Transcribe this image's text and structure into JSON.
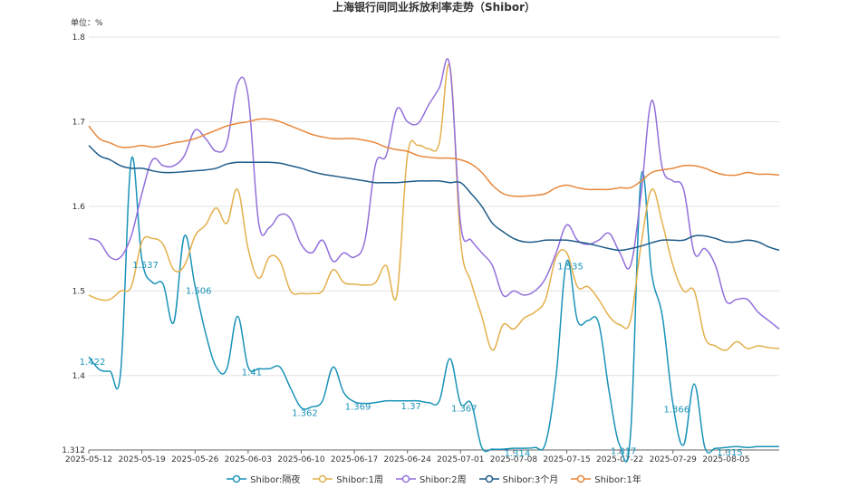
{
  "chart_data": {
    "type": "line",
    "title": "上海银行间同业拆放利率走势（Shibor）",
    "y_unit_label": "单位：%",
    "categories": [
      "2025-05-12",
      null,
      null,
      null,
      null,
      "2025-05-19",
      null,
      null,
      null,
      null,
      "2025-05-26",
      null,
      null,
      null,
      null,
      "2025-06-03",
      null,
      null,
      null,
      null,
      "2025-06-10",
      null,
      null,
      null,
      null,
      "2025-06-17",
      null,
      null,
      null,
      null,
      "2025-06-24",
      null,
      null,
      null,
      null,
      "2025-07-01",
      null,
      null,
      null,
      null,
      "2025-07-08",
      null,
      null,
      null,
      null,
      "2025-07-15",
      null,
      null,
      null,
      null,
      "2025-07-22",
      null,
      null,
      null,
      null,
      "2025-07-29",
      null,
      null,
      null,
      null,
      "2025-08-05",
      null,
      null,
      null,
      null,
      null
    ],
    "ylim": [
      1.312,
      1.8
    ],
    "yticks": [
      1.312,
      1.4,
      1.5,
      1.6,
      1.7,
      1.8
    ],
    "grid": true,
    "smooth": true,
    "legend": "bottom",
    "series": [
      {
        "name": "Shibor:隔夜",
        "color": "#1a93b8",
        "values": [
          1.422,
          1.407,
          1.405,
          1.404,
          1.655,
          1.537,
          1.51,
          1.508,
          1.463,
          1.565,
          1.506,
          1.45,
          1.41,
          1.408,
          1.47,
          1.41,
          1.408,
          1.408,
          1.41,
          1.385,
          1.362,
          1.363,
          1.37,
          1.41,
          1.38,
          1.369,
          1.367,
          1.368,
          1.37,
          1.37,
          1.37,
          1.37,
          1.368,
          1.37,
          1.42,
          1.367,
          1.367,
          1.315,
          1.313,
          1.313,
          1.314,
          1.314,
          1.315,
          1.32,
          1.4,
          1.535,
          1.465,
          1.465,
          1.462,
          1.38,
          1.317,
          1.33,
          1.635,
          1.52,
          1.47,
          1.366,
          1.318,
          1.39,
          1.315,
          1.314,
          1.315,
          1.316,
          1.315,
          1.316,
          1.316,
          1.316
        ],
        "value_labels": [
          "1.422",
          null,
          null,
          null,
          null,
          "1.537",
          null,
          null,
          null,
          null,
          "1.506",
          null,
          null,
          null,
          null,
          "1.41",
          null,
          null,
          null,
          null,
          "1.362",
          null,
          null,
          null,
          null,
          "1.369",
          null,
          null,
          null,
          null,
          "1.37",
          null,
          null,
          null,
          null,
          "1.367",
          null,
          null,
          null,
          null,
          "1.314",
          null,
          null,
          null,
          null,
          "1.535",
          null,
          null,
          null,
          null,
          "1.317",
          null,
          null,
          null,
          null,
          "1.366",
          null,
          null,
          null,
          null,
          "1.315",
          null,
          null,
          null,
          null,
          null
        ]
      },
      {
        "name": "Shibor:1周",
        "color": "#e3b04b",
        "values": [
          1.495,
          1.49,
          1.49,
          1.5,
          1.505,
          1.558,
          1.562,
          1.555,
          1.525,
          1.53,
          1.565,
          1.578,
          1.598,
          1.58,
          1.62,
          1.55,
          1.515,
          1.54,
          1.535,
          1.5,
          1.497,
          1.497,
          1.5,
          1.525,
          1.51,
          1.508,
          1.507,
          1.51,
          1.53,
          1.495,
          1.66,
          1.672,
          1.668,
          1.675,
          1.765,
          1.56,
          1.51,
          1.47,
          1.43,
          1.46,
          1.455,
          1.468,
          1.475,
          1.49,
          1.54,
          1.545,
          1.505,
          1.505,
          1.49,
          1.47,
          1.46,
          1.465,
          1.555,
          1.62,
          1.58,
          1.53,
          1.5,
          1.5,
          1.445,
          1.435,
          1.43,
          1.44,
          1.432,
          1.435,
          1.433,
          1.432
        ]
      },
      {
        "name": "Shibor:2周",
        "color": "#9370db",
        "values": [
          1.562,
          1.558,
          1.54,
          1.54,
          1.565,
          1.615,
          1.655,
          1.648,
          1.648,
          1.66,
          1.69,
          1.68,
          1.665,
          1.675,
          1.745,
          1.73,
          1.58,
          1.575,
          1.59,
          1.585,
          1.555,
          1.545,
          1.56,
          1.535,
          1.545,
          1.54,
          1.56,
          1.65,
          1.66,
          1.715,
          1.7,
          1.698,
          1.72,
          1.74,
          1.765,
          1.58,
          1.56,
          1.545,
          1.53,
          1.495,
          1.5,
          1.495,
          1.5,
          1.515,
          1.545,
          1.578,
          1.56,
          1.555,
          1.56,
          1.568,
          1.545,
          1.53,
          1.615,
          1.725,
          1.645,
          1.63,
          1.62,
          1.545,
          1.55,
          1.53,
          1.488,
          1.49,
          1.49,
          1.475,
          1.465,
          1.455
        ]
      },
      {
        "name": "Shibor:3个月",
        "color": "#1f5c8a",
        "values": [
          1.672,
          1.66,
          1.655,
          1.648,
          1.645,
          1.645,
          1.642,
          1.64,
          1.64,
          1.641,
          1.642,
          1.643,
          1.645,
          1.65,
          1.652,
          1.652,
          1.652,
          1.652,
          1.651,
          1.648,
          1.645,
          1.641,
          1.638,
          1.636,
          1.634,
          1.632,
          1.63,
          1.628,
          1.628,
          1.628,
          1.629,
          1.63,
          1.63,
          1.63,
          1.628,
          1.628,
          1.615,
          1.6,
          1.58,
          1.57,
          1.562,
          1.558,
          1.558,
          1.56,
          1.56,
          1.56,
          1.558,
          1.556,
          1.553,
          1.55,
          1.548,
          1.55,
          1.553,
          1.557,
          1.56,
          1.56,
          1.56,
          1.565,
          1.565,
          1.562,
          1.558,
          1.558,
          1.56,
          1.558,
          1.552,
          1.548
        ]
      },
      {
        "name": "Shibor:1年",
        "color": "#e8873a",
        "values": [
          1.695,
          1.68,
          1.675,
          1.67,
          1.67,
          1.672,
          1.67,
          1.672,
          1.675,
          1.677,
          1.68,
          1.685,
          1.69,
          1.695,
          1.698,
          1.7,
          1.703,
          1.703,
          1.7,
          1.695,
          1.69,
          1.685,
          1.682,
          1.68,
          1.68,
          1.68,
          1.678,
          1.675,
          1.67,
          1.667,
          1.665,
          1.66,
          1.658,
          1.657,
          1.657,
          1.655,
          1.65,
          1.64,
          1.625,
          1.615,
          1.612,
          1.612,
          1.613,
          1.615,
          1.622,
          1.625,
          1.622,
          1.62,
          1.62,
          1.62,
          1.622,
          1.622,
          1.63,
          1.64,
          1.643,
          1.645,
          1.648,
          1.648,
          1.645,
          1.64,
          1.637,
          1.637,
          1.64,
          1.638,
          1.638,
          1.637
        ]
      }
    ]
  }
}
